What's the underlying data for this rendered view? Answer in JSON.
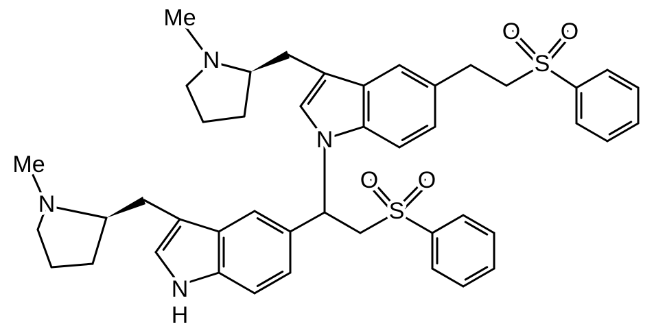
{
  "atoms": [
    "Me",
    "N",
    "N",
    "S",
    "O",
    "O",
    "S",
    "O",
    "O",
    "Me",
    "N",
    "N",
    "H"
  ]
}
